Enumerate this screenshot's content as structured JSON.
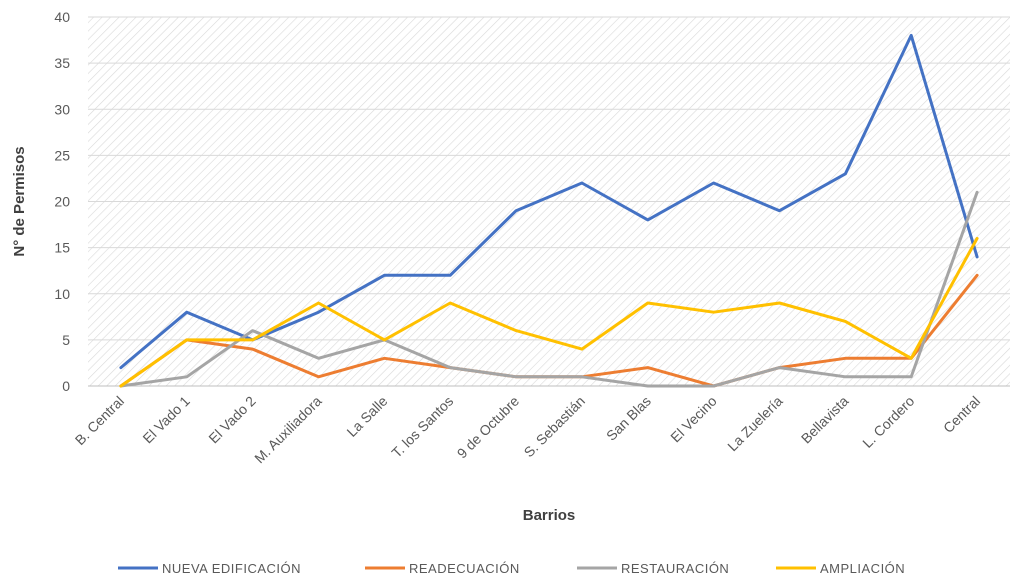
{
  "chart_data": {
    "type": "line",
    "title": "",
    "xlabel": "Barrios",
    "ylabel": "N° de Permisos",
    "ylim": [
      0,
      40
    ],
    "yticks": [
      0,
      5,
      10,
      15,
      20,
      25,
      30,
      35,
      40
    ],
    "grid": "hatched plot area",
    "legend_position": "bottom",
    "categories": [
      "B. Central",
      "El Vado 1",
      "El Vado 2",
      "M. Auxiliadora",
      "La Salle",
      "T. los Santos",
      "9 de Octubre",
      "S. Sebastián",
      "San Blas",
      "El Vecino",
      "La Zuelería",
      "Bellavista",
      "L. Cordero",
      "Central"
    ],
    "series": [
      {
        "name": "NUEVA EDIFICACIÓN",
        "color": "#4472C4",
        "values": [
          2,
          8,
          5,
          8,
          12,
          12,
          19,
          22,
          18,
          22,
          19,
          23,
          38,
          14
        ]
      },
      {
        "name": "READECUACIÓN",
        "color": "#ED7D31",
        "values": [
          0,
          5,
          4,
          1,
          3,
          2,
          1,
          1,
          2,
          0,
          2,
          3,
          3,
          12
        ]
      },
      {
        "name": "RESTAURACIÓN",
        "color": "#A5A5A5",
        "values": [
          0,
          1,
          6,
          3,
          5,
          2,
          1,
          1,
          0,
          0,
          2,
          1,
          1,
          21
        ]
      },
      {
        "name": "AMPLIACIÓN",
        "color": "#FFC000",
        "values": [
          0,
          5,
          5,
          9,
          5,
          9,
          6,
          4,
          9,
          8,
          9,
          7,
          3,
          16
        ]
      }
    ]
  }
}
